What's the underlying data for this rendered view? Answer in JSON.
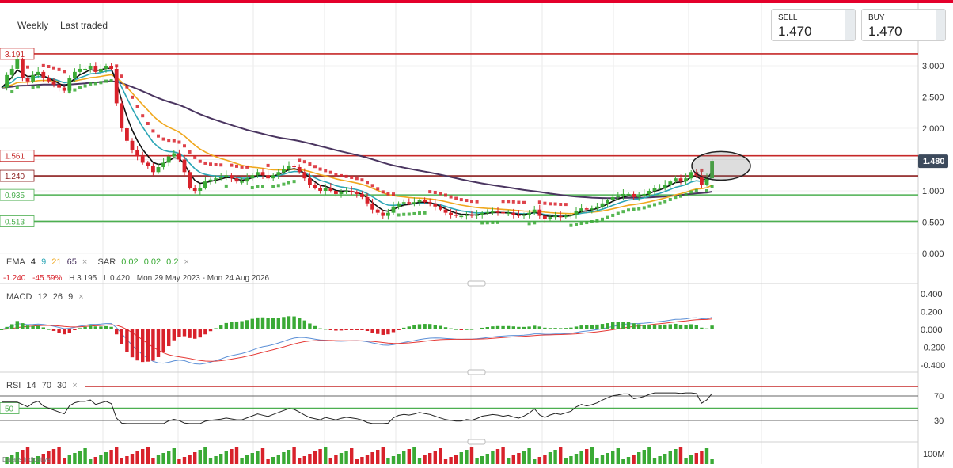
{
  "header": {
    "tab_interval": "Weekly",
    "tab_mode": "Last traded",
    "sell_label": "SELL",
    "sell_value": "1.470",
    "buy_label": "BUY",
    "buy_value": "1.470"
  },
  "legend": {
    "ema_label": "EMA",
    "ema_periods": [
      "4",
      "9",
      "21",
      "65"
    ],
    "sar_label": "SAR",
    "sar_params": [
      "0.02",
      "0.02",
      "0.2"
    ],
    "close_icon": "×"
  },
  "info": {
    "change": "-1.240",
    "change_pct": "-45.59%",
    "high": "H 3.195",
    "low": "L 0.420",
    "range": "Mon 29 May 2023 - Mon 24 Aug 2026"
  },
  "macd_label": {
    "name": "MACD",
    "params": [
      "12",
      "26",
      "9"
    ]
  },
  "rsi_label": {
    "name": "RSI",
    "params": [
      "14",
      "70",
      "30"
    ]
  },
  "disclaimer": "Data is indicative",
  "colors": {
    "accent": "#e4002b",
    "up": "#3aaa35",
    "down": "#d8222b",
    "ema4": "#111111",
    "ema9": "#2aa5b5",
    "ema21": "#f0a81e",
    "ema65": "#4a3560",
    "macd": "#5b8fd6",
    "signal": "#e53935",
    "level_red": "#c62828",
    "level_green": "#4caf50"
  },
  "chart_data": {
    "type": "candlestick",
    "interval": "weekly",
    "price_axis": {
      "ticks": [
        "3.000",
        "2.500",
        "2.000",
        "1.500",
        "1.000",
        "0.500",
        "0.000"
      ],
      "range": [
        0,
        3.3
      ]
    },
    "current_price": "1.480",
    "levels": [
      {
        "label": "3.191",
        "value": 3.191,
        "color": "red"
      },
      {
        "label": "1.561",
        "value": 1.561,
        "color": "red"
      },
      {
        "label": "1.240",
        "value": 1.24,
        "color": "darkred"
      },
      {
        "label": "0.935",
        "value": 0.935,
        "color": "green"
      },
      {
        "label": "0.513",
        "value": 0.513,
        "color": "green"
      }
    ],
    "close": [
      2.65,
      2.85,
      2.95,
      3.1,
      2.8,
      2.75,
      2.85,
      2.9,
      2.8,
      2.75,
      2.7,
      2.65,
      2.6,
      2.8,
      2.9,
      2.95,
      2.95,
      3.0,
      2.9,
      2.95,
      3.0,
      2.95,
      2.4,
      2.0,
      1.8,
      1.65,
      1.55,
      1.45,
      1.4,
      1.3,
      1.38,
      1.45,
      1.55,
      1.6,
      1.5,
      1.3,
      1.05,
      1.0,
      1.05,
      1.15,
      1.18,
      1.2,
      1.22,
      1.25,
      1.2,
      1.15,
      1.15,
      1.2,
      1.25,
      1.3,
      1.25,
      1.2,
      1.25,
      1.3,
      1.35,
      1.4,
      1.38,
      1.3,
      1.2,
      1.1,
      1.05,
      1.0,
      1.05,
      1.0,
      0.95,
      0.98,
      1.0,
      0.98,
      0.95,
      0.9,
      0.8,
      0.7,
      0.65,
      0.6,
      0.65,
      0.75,
      0.8,
      0.82,
      0.8,
      0.82,
      0.85,
      0.82,
      0.8,
      0.75,
      0.7,
      0.65,
      0.62,
      0.6,
      0.6,
      0.62,
      0.6,
      0.62,
      0.65,
      0.66,
      0.67,
      0.66,
      0.64,
      0.65,
      0.62,
      0.6,
      0.62,
      0.65,
      0.7,
      0.6,
      0.55,
      0.58,
      0.6,
      0.58,
      0.6,
      0.62,
      0.68,
      0.72,
      0.7,
      0.72,
      0.75,
      0.8,
      0.85,
      0.9,
      0.92,
      0.95,
      0.95,
      0.9,
      0.92,
      0.95,
      1.0,
      1.05,
      1.05,
      1.1,
      1.15,
      1.2,
      1.15,
      1.2,
      1.3,
      1.25,
      1.1,
      1.2,
      1.48
    ],
    "ema_periods": [
      4,
      9,
      21,
      65
    ],
    "sar": {
      "params": [
        0.02,
        0.02,
        0.2
      ]
    },
    "macd": {
      "ticks": [
        "0.400",
        "0.200",
        "0.000",
        "-0.200",
        "-0.400"
      ],
      "range": [
        -0.5,
        0.5
      ]
    },
    "rsi": {
      "ticks": [
        "70",
        "30"
      ],
      "overbought": 70,
      "oversold": 30,
      "midline_label": "50"
    },
    "volume": {
      "ticks": [
        "100M"
      ]
    }
  }
}
